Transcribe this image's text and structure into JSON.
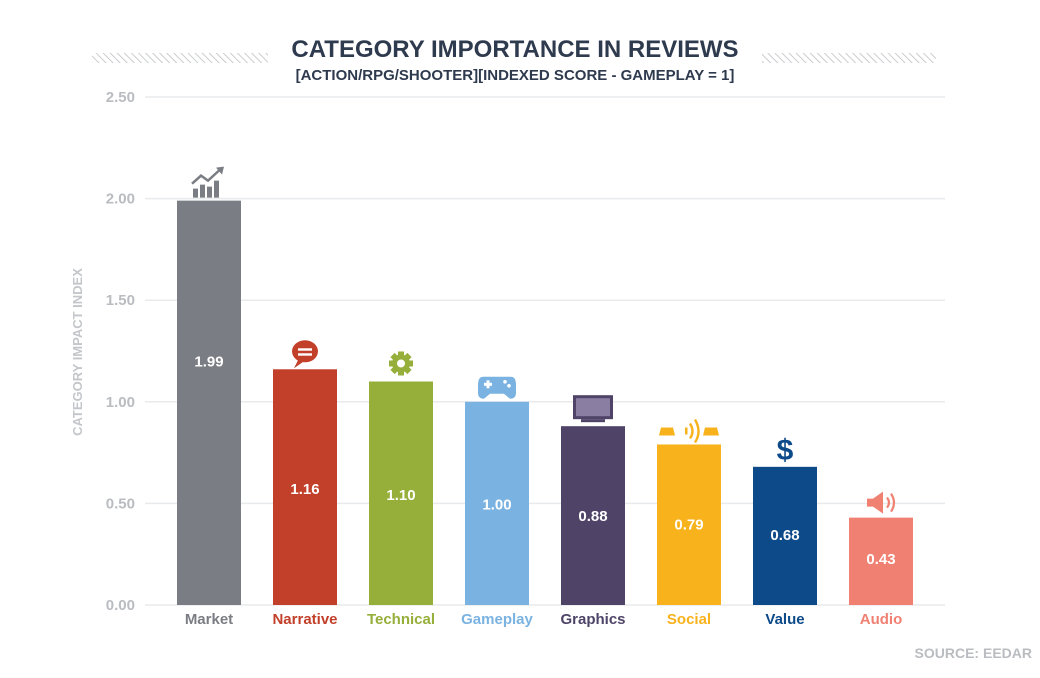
{
  "chart_data": {
    "type": "bar",
    "title": "CATEGORY IMPORTANCE IN REVIEWS",
    "subtitle": "[ACTION/RPG/SHOOTER][INDEXED SCORE - GAMEPLAY = 1]",
    "ylabel": "CATEGORY IMPACT INDEX",
    "xlabel": "",
    "ylim": [
      0,
      2.5
    ],
    "yticks": [
      "0.00",
      "0.50",
      "1.00",
      "1.50",
      "2.00",
      "2.50"
    ],
    "grid": true,
    "categories": [
      "Market",
      "Narrative",
      "Technical",
      "Gameplay",
      "Graphics",
      "Social",
      "Value",
      "Audio"
    ],
    "values": [
      1.99,
      1.16,
      1.1,
      1.0,
      0.88,
      0.79,
      0.68,
      0.43
    ],
    "value_labels": [
      "1.99",
      "1.16",
      "1.10",
      "1.00",
      "0.88",
      "0.79",
      "0.68",
      "0.43"
    ],
    "colors": [
      "#7a7d83",
      "#c2402a",
      "#96af3a",
      "#7ab3e2",
      "#4f4468",
      "#f8b21c",
      "#0d4a8a",
      "#f08172"
    ],
    "icons": [
      "trend-chart-icon",
      "speech-bubble-icon",
      "gear-icon",
      "gamepad-icon",
      "monitor-icon",
      "multiplayer-icon",
      "dollar-icon",
      "speaker-icon"
    ],
    "source": "SOURCE: EEDAR"
  }
}
